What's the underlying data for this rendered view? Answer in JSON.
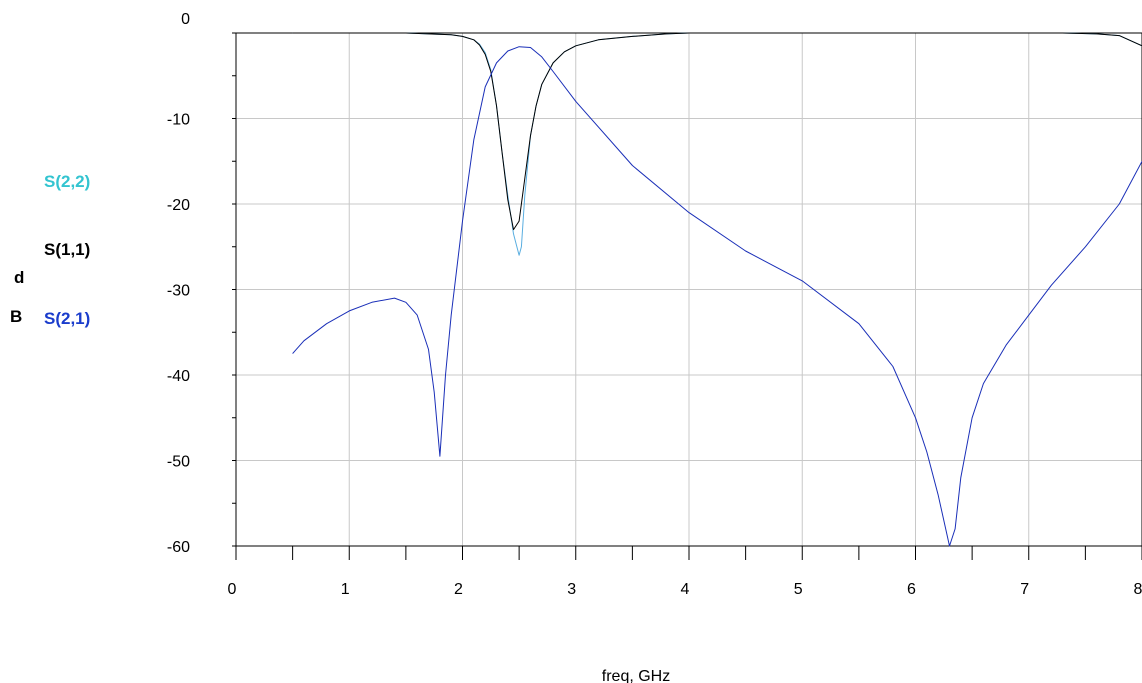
{
  "chart_data": {
    "type": "line",
    "xlabel": "freq, GHz",
    "ylabel": [
      "d",
      "B"
    ],
    "xlim": [
      0,
      8
    ],
    "ylim": [
      -60,
      0
    ],
    "x_ticks": [
      0,
      1,
      2,
      3,
      4,
      5,
      6,
      7,
      8
    ],
    "x_tick_labels": [
      "0",
      "1",
      "2",
      "3",
      "4",
      "5",
      "6",
      "7",
      "8"
    ],
    "y_ticks": [
      0,
      -10,
      -20,
      -30,
      -40,
      -50,
      -60
    ],
    "y_tick_labels": [
      "0",
      "-10",
      "-20",
      "-30",
      "-40",
      "-50",
      "-60"
    ],
    "grid": true,
    "legend_placement": "left",
    "series": [
      {
        "name": "S(2,2)",
        "color": "#33c4d0",
        "line_color": "#5aaee0",
        "x": [
          0.5,
          1.5,
          1.7,
          1.9,
          2.0,
          2.1,
          2.15,
          2.2,
          2.25,
          2.3,
          2.35,
          2.4,
          2.45,
          2.5,
          2.52,
          2.55,
          2.6,
          2.65,
          2.7,
          2.8,
          2.9,
          3.0,
          3.2,
          3.5,
          3.8,
          4.0,
          5.0,
          6.0,
          7.0,
          7.3,
          7.6,
          7.8,
          8.0
        ],
        "y": [
          0,
          0,
          -0.1,
          -0.2,
          -0.4,
          -0.8,
          -1.3,
          -2.3,
          -4.3,
          -8.5,
          -14,
          -19,
          -23.5,
          -26,
          -25,
          -19,
          -12,
          -8.5,
          -6,
          -3.5,
          -2.2,
          -1.5,
          -0.8,
          -0.4,
          -0.1,
          0,
          0,
          0,
          0,
          0,
          -0.1,
          -0.3,
          -1.5
        ]
      },
      {
        "name": "S(1,1)",
        "color": "#000000",
        "line_color": "#000000",
        "x": [
          0.5,
          1.5,
          1.7,
          1.9,
          2.0,
          2.1,
          2.15,
          2.2,
          2.25,
          2.3,
          2.35,
          2.4,
          2.45,
          2.5,
          2.55,
          2.6,
          2.65,
          2.7,
          2.8,
          2.9,
          3.0,
          3.2,
          3.5,
          3.8,
          4.0,
          5.0,
          6.0,
          7.0,
          7.3,
          7.6,
          7.8,
          8.0
        ],
        "y": [
          0,
          0,
          -0.1,
          -0.2,
          -0.4,
          -0.8,
          -1.4,
          -2.5,
          -4.5,
          -8.5,
          -14,
          -19.5,
          -23,
          -22,
          -17,
          -12,
          -8.5,
          -6,
          -3.5,
          -2.2,
          -1.5,
          -0.8,
          -0.4,
          -0.1,
          0,
          0,
          0,
          0,
          0,
          -0.1,
          -0.3,
          -1.5
        ]
      },
      {
        "name": "S(2,1)",
        "color": "#1a3ccc",
        "line_color": "#1a2fb8",
        "x": [
          0.5,
          0.6,
          0.8,
          1.0,
          1.2,
          1.4,
          1.5,
          1.6,
          1.7,
          1.75,
          1.8,
          1.85,
          1.9,
          2.0,
          2.1,
          2.2,
          2.3,
          2.4,
          2.5,
          2.6,
          2.7,
          2.8,
          3.0,
          3.5,
          4.0,
          4.5,
          5.0,
          5.5,
          5.8,
          6.0,
          6.1,
          6.2,
          6.3,
          6.35,
          6.4,
          6.5,
          6.6,
          6.8,
          7.0,
          7.2,
          7.5,
          7.8,
          8.0
        ],
        "y": [
          -37.5,
          -36,
          -34,
          -32.5,
          -31.5,
          -31,
          -31.5,
          -33,
          -37,
          -42,
          -49.5,
          -40,
          -33,
          -22,
          -12.5,
          -6.3,
          -3.5,
          -2.1,
          -1.6,
          -1.7,
          -2.8,
          -4.5,
          -8,
          -15.5,
          -21,
          -25.5,
          -29,
          -34,
          -39,
          -45,
          -49,
          -54,
          -60,
          -58,
          -52,
          -45,
          -41,
          -36.5,
          -33,
          -29.5,
          -25,
          -20,
          -15
        ]
      }
    ]
  }
}
